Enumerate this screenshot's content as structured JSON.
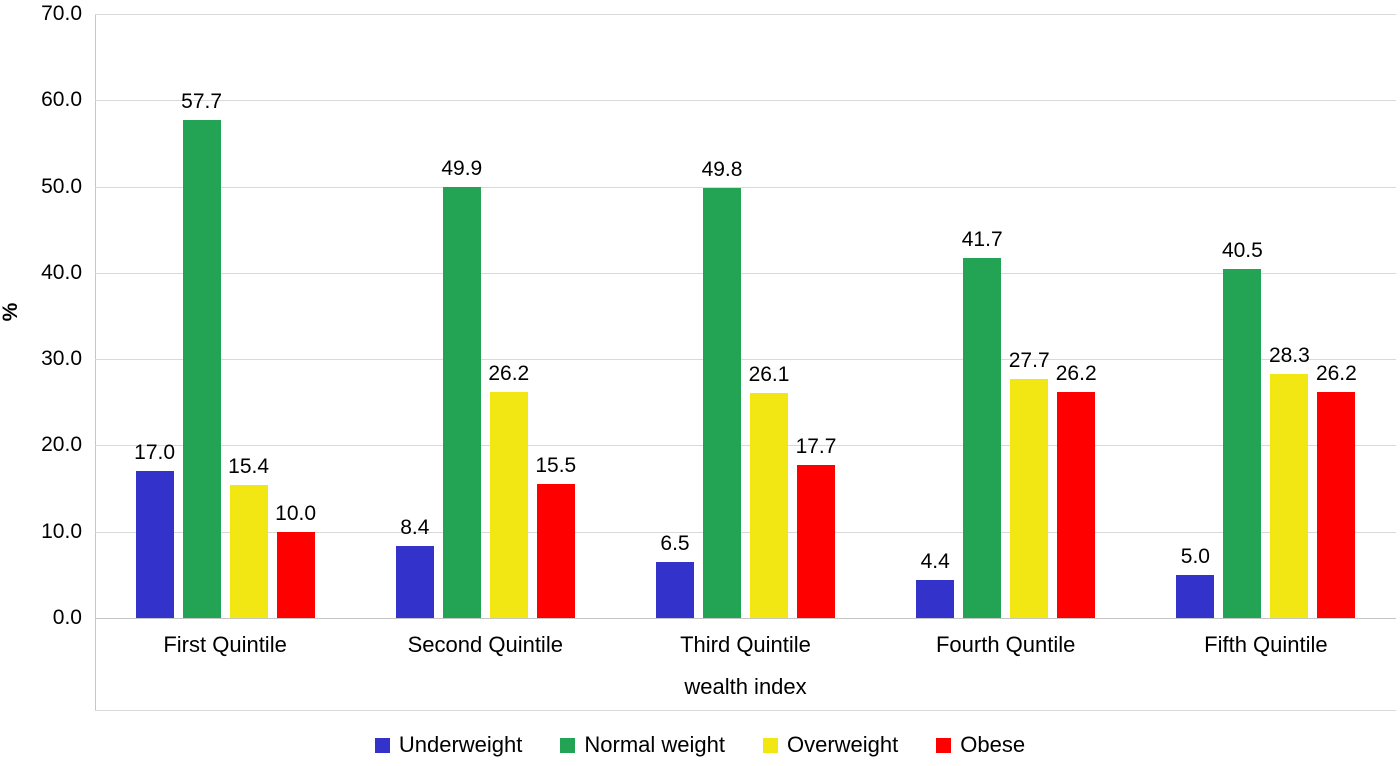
{
  "chart_data": {
    "type": "bar",
    "title": "",
    "categories": [
      "First Quintile",
      "Second Quintile",
      "Third Quintile",
      "Fourth Quntile",
      "Fifth Quintile"
    ],
    "series": [
      {
        "name": "Underweight",
        "color": "#3333cc",
        "values": [
          17.0,
          8.4,
          6.5,
          4.4,
          5.0
        ]
      },
      {
        "name": "Normal weight",
        "color": "#23a455",
        "values": [
          57.7,
          49.9,
          49.8,
          41.7,
          40.5
        ]
      },
      {
        "name": "Overweight",
        "color": "#f2e713",
        "values": [
          15.4,
          26.2,
          26.1,
          27.7,
          28.3
        ]
      },
      {
        "name": "Obese",
        "color": "#fe0000",
        "values": [
          10.0,
          15.5,
          17.7,
          26.2,
          26.2
        ]
      }
    ],
    "xlabel": "wealth index",
    "ylabel": "%",
    "ylim": [
      0,
      70
    ],
    "ytick_step": 10,
    "ytick_format": "one_decimal",
    "value_labels": true,
    "grid": true,
    "legend_position": "bottom",
    "gridline_color": "#d9d9d9",
    "axis_line_color": "#c6c6c6"
  }
}
